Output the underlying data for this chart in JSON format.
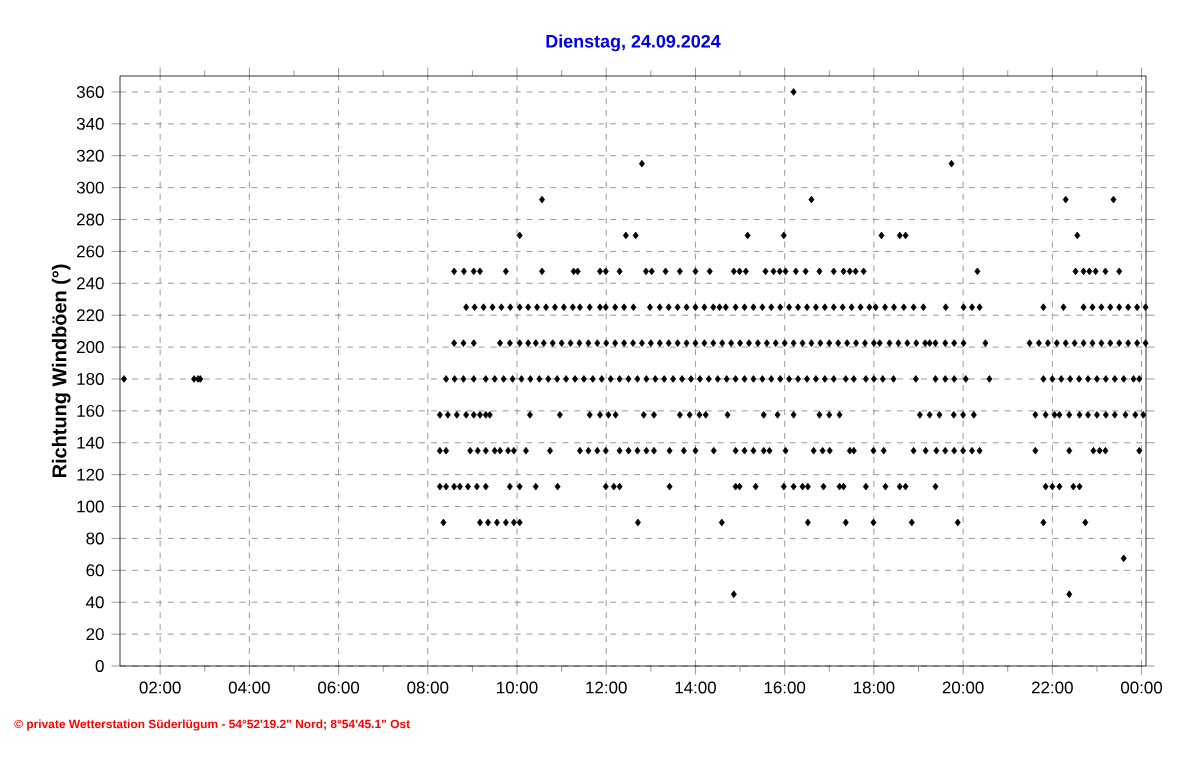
{
  "chart_data": {
    "type": "scatter",
    "title": "Dienstag, 24.09.2024",
    "ylabel": "Richtung Windböen (°)",
    "annotations": [
      "© private Wetterstation Süderlügum - 54°52'19.2\" Nord; 8°54'45.1\" Ost"
    ],
    "xlim": [
      1.1,
      24.1
    ],
    "ylim": [
      0,
      370
    ],
    "xticks": [
      {
        "value": 2,
        "label": "02:00"
      },
      {
        "value": 3,
        "label": null
      },
      {
        "value": 4,
        "label": "04:00"
      },
      {
        "value": 5,
        "label": null
      },
      {
        "value": 6,
        "label": "06:00"
      },
      {
        "value": 7,
        "label": null
      },
      {
        "value": 8,
        "label": "08:00"
      },
      {
        "value": 9,
        "label": null
      },
      {
        "value": 10,
        "label": "10:00"
      },
      {
        "value": 11,
        "label": null
      },
      {
        "value": 12,
        "label": "12:00"
      },
      {
        "value": 13,
        "label": null
      },
      {
        "value": 14,
        "label": "14:00"
      },
      {
        "value": 15,
        "label": null
      },
      {
        "value": 16,
        "label": "16:00"
      },
      {
        "value": 17,
        "label": null
      },
      {
        "value": 18,
        "label": "18:00"
      },
      {
        "value": 19,
        "label": null
      },
      {
        "value": 20,
        "label": "20:00"
      },
      {
        "value": 21,
        "label": null
      },
      {
        "value": 22,
        "label": "22:00"
      },
      {
        "value": 23,
        "label": null
      },
      {
        "value": 24,
        "label": "00:00"
      }
    ],
    "yticks": [
      0,
      20,
      40,
      60,
      80,
      100,
      120,
      140,
      160,
      180,
      200,
      220,
      240,
      260,
      280,
      300,
      320,
      340,
      360
    ],
    "grid": true,
    "marker": "diamond",
    "series": [
      {
        "color": "#000000",
        "x": [
          16.2
        ],
        "values": [
          360
        ]
      },
      {
        "color": "#000000",
        "x": [
          12.8,
          19.74
        ],
        "values": [
          315,
          315
        ]
      },
      {
        "color": "#000000",
        "x": [
          10.56,
          16.6,
          22.3,
          23.37
        ],
        "values": [
          292.5,
          292.5,
          292.5,
          292.5
        ]
      },
      {
        "color": "#000000",
        "x": [
          10.06,
          12.44,
          12.66,
          15.17,
          15.98,
          18.17,
          18.58,
          18.71,
          22.56
        ],
        "values": [
          270,
          270,
          270,
          270,
          270,
          270,
          270,
          270,
          270
        ]
      },
      {
        "color": "#000000",
        "x": [
          8.59,
          8.81,
          9.03,
          9.17,
          9.75,
          10.56,
          11.27,
          11.36,
          11.86,
          11.99,
          12.3,
          12.89,
          13.02,
          13.33,
          13.65,
          14.0,
          14.32,
          14.86,
          14.99,
          15.13,
          15.57,
          15.75,
          15.89,
          16.02,
          16.25,
          16.47,
          16.78,
          17.1,
          17.32,
          17.46,
          17.59,
          17.77,
          20.32,
          22.52,
          22.7,
          22.83,
          22.97,
          23.19,
          23.5
        ],
        "values": [
          247.5,
          247.5,
          247.5,
          247.5,
          247.5,
          247.5,
          247.5,
          247.5,
          247.5,
          247.5,
          247.5,
          247.5,
          247.5,
          247.5,
          247.5,
          247.5,
          247.5,
          247.5,
          247.5,
          247.5,
          247.5,
          247.5,
          247.5,
          247.5,
          247.5,
          247.5,
          247.5,
          247.5,
          247.5,
          247.5,
          247.5,
          247.5,
          247.5,
          247.5,
          247.5,
          247.5,
          247.5,
          247.5,
          247.5
        ]
      },
      {
        "color": "#000000",
        "x": [
          8.86,
          9.05,
          9.25,
          9.45,
          9.65,
          9.85,
          10.06,
          10.25,
          10.45,
          10.65,
          10.85,
          11.05,
          11.25,
          11.41,
          11.63,
          11.86,
          11.99,
          12.2,
          12.4,
          12.61,
          12.98,
          13.2,
          13.4,
          13.6,
          13.8,
          14.0,
          14.2,
          14.4,
          14.54,
          14.68,
          14.9,
          15.1,
          15.3,
          15.5,
          15.7,
          15.9,
          16.1,
          16.3,
          16.5,
          16.7,
          16.9,
          17.1,
          17.3,
          17.5,
          17.7,
          17.9,
          18.04,
          18.25,
          18.45,
          18.67,
          18.89,
          19.11,
          19.61,
          20.01,
          20.2,
          20.37,
          21.8,
          22.25,
          22.7,
          22.9,
          23.1,
          23.3,
          23.5,
          23.7,
          23.9,
          24.09
        ],
        "values": [
          225,
          225,
          225,
          225,
          225,
          225,
          225,
          225,
          225,
          225,
          225,
          225,
          225,
          225,
          225,
          225,
          225,
          225,
          225,
          225,
          225,
          225,
          225,
          225,
          225,
          225,
          225,
          225,
          225,
          225,
          225,
          225,
          225,
          225,
          225,
          225,
          225,
          225,
          225,
          225,
          225,
          225,
          225,
          225,
          225,
          225,
          225,
          225,
          225,
          225,
          225,
          225,
          225,
          225,
          225,
          225,
          225,
          225,
          225,
          225,
          225,
          225,
          225,
          225,
          225,
          225
        ]
      },
      {
        "color": "#000000",
        "x": [
          8.59,
          8.8,
          9.03,
          9.62,
          9.84,
          10.06,
          10.25,
          10.42,
          10.6,
          10.8,
          11.0,
          11.2,
          11.4,
          11.6,
          11.8,
          12.0,
          12.2,
          12.4,
          12.6,
          12.8,
          13.0,
          13.2,
          13.4,
          13.6,
          13.8,
          14.0,
          14.2,
          14.4,
          14.6,
          14.8,
          15.0,
          15.2,
          15.4,
          15.6,
          15.8,
          16.0,
          16.2,
          16.4,
          16.6,
          16.8,
          17.0,
          17.2,
          17.4,
          17.6,
          17.8,
          18.0,
          18.13,
          18.35,
          18.55,
          18.75,
          18.95,
          19.15,
          19.25,
          19.38,
          19.6,
          19.8,
          20.01,
          20.5,
          21.49,
          21.7,
          21.9,
          22.1,
          22.3,
          22.5,
          22.7,
          22.9,
          23.1,
          23.3,
          23.5,
          23.7,
          23.9,
          24.09
        ],
        "values": [
          202.5,
          202.5,
          202.5,
          202.5,
          202.5,
          202.5,
          202.5,
          202.5,
          202.5,
          202.5,
          202.5,
          202.5,
          202.5,
          202.5,
          202.5,
          202.5,
          202.5,
          202.5,
          202.5,
          202.5,
          202.5,
          202.5,
          202.5,
          202.5,
          202.5,
          202.5,
          202.5,
          202.5,
          202.5,
          202.5,
          202.5,
          202.5,
          202.5,
          202.5,
          202.5,
          202.5,
          202.5,
          202.5,
          202.5,
          202.5,
          202.5,
          202.5,
          202.5,
          202.5,
          202.5,
          202.5,
          202.5,
          202.5,
          202.5,
          202.5,
          202.5,
          202.5,
          202.5,
          202.5,
          202.5,
          202.5,
          202.5,
          202.5,
          202.5,
          202.5,
          202.5,
          202.5,
          202.5,
          202.5,
          202.5,
          202.5,
          202.5,
          202.5,
          202.5,
          202.5,
          202.5,
          202.5
        ]
      },
      {
        "color": "#000000",
        "x": [
          1.19,
          2.76,
          2.85,
          2.9,
          8.41,
          8.6,
          8.8,
          9.03,
          9.3,
          9.5,
          9.7,
          9.9,
          10.1,
          10.3,
          10.5,
          10.7,
          10.9,
          11.1,
          11.3,
          11.5,
          11.7,
          11.9,
          12.1,
          12.3,
          12.5,
          12.7,
          12.9,
          13.1,
          13.3,
          13.5,
          13.7,
          13.9,
          14.1,
          14.3,
          14.5,
          14.7,
          14.9,
          15.1,
          15.3,
          15.5,
          15.7,
          15.9,
          16.1,
          16.3,
          16.5,
          16.7,
          16.9,
          17.1,
          17.37,
          17.55,
          17.82,
          18.0,
          18.2,
          18.44,
          18.94,
          19.38,
          19.6,
          19.8,
          20.06,
          20.59,
          21.8,
          22.0,
          22.2,
          22.4,
          22.6,
          22.8,
          23.0,
          23.2,
          23.4,
          23.6,
          23.82,
          23.95
        ],
        "values": [
          180,
          180,
          180,
          180,
          180,
          180,
          180,
          180,
          180,
          180,
          180,
          180,
          180,
          180,
          180,
          180,
          180,
          180,
          180,
          180,
          180,
          180,
          180,
          180,
          180,
          180,
          180,
          180,
          180,
          180,
          180,
          180,
          180,
          180,
          180,
          180,
          180,
          180,
          180,
          180,
          180,
          180,
          180,
          180,
          180,
          180,
          180,
          180,
          180,
          180,
          180,
          180,
          180,
          180,
          180,
          180,
          180,
          180,
          180,
          180,
          180,
          180,
          180,
          180,
          180,
          180,
          180,
          180,
          180,
          180,
          180,
          180
        ]
      },
      {
        "color": "#000000",
        "x": [
          8.27,
          8.45,
          8.65,
          8.86,
          9.03,
          9.17,
          9.3,
          9.39,
          10.29,
          10.96,
          11.63,
          11.86,
          12.05,
          12.21,
          12.84,
          13.07,
          13.65,
          13.87,
          14.09,
          14.23,
          14.72,
          15.53,
          15.84,
          16.2,
          16.78,
          17.0,
          17.23,
          19.03,
          19.25,
          19.47,
          19.79,
          20.0,
          20.24,
          21.62,
          21.85,
          22.05,
          22.16,
          22.38,
          22.61,
          22.8,
          23.0,
          23.2,
          23.4,
          23.64,
          23.86,
          24.04
        ],
        "values": [
          157.5,
          157.5,
          157.5,
          157.5,
          157.5,
          157.5,
          157.5,
          157.5,
          157.5,
          157.5,
          157.5,
          157.5,
          157.5,
          157.5,
          157.5,
          157.5,
          157.5,
          157.5,
          157.5,
          157.5,
          157.5,
          157.5,
          157.5,
          157.5,
          157.5,
          157.5,
          157.5,
          157.5,
          157.5,
          157.5,
          157.5,
          157.5,
          157.5,
          157.5,
          157.5,
          157.5,
          157.5,
          157.5,
          157.5,
          157.5,
          157.5,
          157.5,
          157.5,
          157.5,
          157.5,
          157.5
        ]
      },
      {
        "color": "#000000",
        "x": [
          8.27,
          8.41,
          8.95,
          9.12,
          9.3,
          9.5,
          9.62,
          9.8,
          9.93,
          10.2,
          10.74,
          11.41,
          11.6,
          11.8,
          11.99,
          12.3,
          12.5,
          12.7,
          12.9,
          13.07,
          13.42,
          13.74,
          14.0,
          14.41,
          14.9,
          15.1,
          15.3,
          15.53,
          15.66,
          16.02,
          16.65,
          16.85,
          17.01,
          17.46,
          17.55,
          17.99,
          18.22,
          18.89,
          19.16,
          19.4,
          19.6,
          19.8,
          20.0,
          20.2,
          20.37,
          21.62,
          22.38,
          22.92,
          23.06,
          23.19,
          23.95
        ],
        "values": [
          135,
          135,
          135,
          135,
          135,
          135,
          135,
          135,
          135,
          135,
          135,
          135,
          135,
          135,
          135,
          135,
          135,
          135,
          135,
          135,
          135,
          135,
          135,
          135,
          135,
          135,
          135,
          135,
          135,
          135,
          135,
          135,
          135,
          135,
          135,
          135,
          135,
          135,
          135,
          135,
          135,
          135,
          135,
          135,
          135,
          135,
          135,
          135,
          135,
          135,
          135
        ]
      },
      {
        "color": "#000000",
        "x": [
          8.27,
          8.41,
          8.59,
          8.72,
          8.9,
          9.1,
          9.3,
          9.84,
          10.06,
          10.42,
          10.91,
          11.99,
          12.17,
          12.3,
          13.42,
          14.9,
          14.99,
          15.35,
          15.98,
          16.2,
          16.4,
          16.52,
          16.87,
          17.23,
          17.32,
          17.82,
          18.26,
          18.58,
          18.71,
          19.38,
          21.85,
          22.0,
          22.16,
          22.47,
          22.61
        ],
        "values": [
          112.5,
          112.5,
          112.5,
          112.5,
          112.5,
          112.5,
          112.5,
          112.5,
          112.5,
          112.5,
          112.5,
          112.5,
          112.5,
          112.5,
          112.5,
          112.5,
          112.5,
          112.5,
          112.5,
          112.5,
          112.5,
          112.5,
          112.5,
          112.5,
          112.5,
          112.5,
          112.5,
          112.5,
          112.5,
          112.5,
          112.5,
          112.5,
          112.5,
          112.5,
          112.5
        ]
      },
      {
        "color": "#000000",
        "x": [
          8.35,
          9.17,
          9.35,
          9.55,
          9.75,
          9.93,
          10.06,
          12.71,
          14.59,
          16.52,
          17.37,
          17.99,
          18.85,
          19.88,
          21.8,
          22.74
        ],
        "values": [
          90,
          90,
          90,
          90,
          90,
          90,
          90,
          90,
          90,
          90,
          90,
          90,
          90,
          90,
          90,
          90
        ]
      },
      {
        "color": "#000000",
        "x": [
          23.6
        ],
        "values": [
          67.5
        ]
      },
      {
        "color": "#000000",
        "x": [
          14.86,
          22.38
        ],
        "values": [
          45,
          45
        ]
      }
    ]
  }
}
